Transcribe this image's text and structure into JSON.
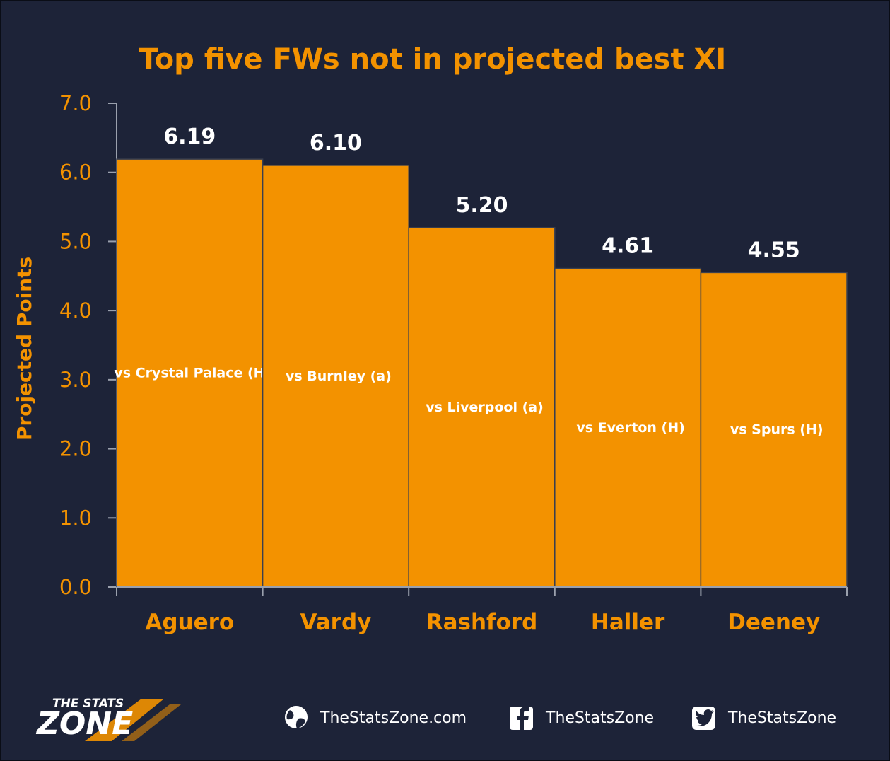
{
  "colors": {
    "background": "#1d2338",
    "bar": "#f39200",
    "accent": "#f39200",
    "value_label": "#ffffff",
    "axis": "#9aa0ad"
  },
  "chart_data": {
    "type": "bar",
    "title": "Top five FWs not in projected best XI",
    "xlabel": "",
    "ylabel": "Projected Points",
    "categories": [
      "Aguero",
      "Vardy",
      "Rashford",
      "Haller",
      "Deeney"
    ],
    "values": [
      6.19,
      6.1,
      5.2,
      4.61,
      4.55
    ],
    "value_labels": [
      "6.19",
      "6.10",
      "5.20",
      "4.61",
      "4.55"
    ],
    "bar_annotations": [
      "vs Crystal Palace (H)",
      "vs Burnley (a)",
      "vs Liverpool (a)",
      "vs Everton (H)",
      "vs Spurs (H)"
    ],
    "ylim": [
      0,
      7
    ],
    "yticks": [
      0,
      1,
      2,
      3,
      4,
      5,
      6,
      7
    ],
    "ytick_labels": [
      "0.0",
      "1.0",
      "2.0",
      "3.0",
      "4.0",
      "5.0",
      "6.0",
      "7.0"
    ],
    "grid": false,
    "legend": "none"
  },
  "footer": {
    "logo_line1": "THE STATS",
    "logo_line2": "ZONE",
    "logo_icon": "stats-zone-logo",
    "website": "TheStatsZone.com",
    "website_icon": "globe-icon",
    "facebook": "TheStatsZone",
    "facebook_icon": "facebook-icon",
    "twitter": "TheStatsZone",
    "twitter_icon": "twitter-icon"
  }
}
